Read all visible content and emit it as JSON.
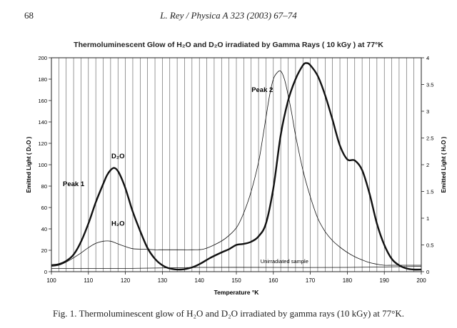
{
  "page": {
    "page_number": "68",
    "running_head": "L. Rey / Physica A 323 (2003) 67–74",
    "caption": "Fig. 1. Thermoluminescent glow of H₂O and D₂O irradiated by gamma rays (10 kGy) at 77°K."
  },
  "chart_data": {
    "type": "line",
    "title": "Thermoluminescent Glow of H₂O and D₂O irradiated by Gamma Rays ( 10 kGy ) at 77°K",
    "xlabel": "Temperature °K",
    "ylabel_left": "Emitted Light ( D₂O )",
    "ylabel_right": "Emitted Light ( H₂O )",
    "xlim": [
      100,
      200
    ],
    "ylim_left": [
      0,
      200
    ],
    "ylim_right": [
      0,
      4
    ],
    "x_ticks": [
      100,
      110,
      120,
      130,
      140,
      150,
      160,
      170,
      180,
      190,
      200
    ],
    "y_ticks_left": [
      0,
      20,
      40,
      60,
      80,
      100,
      120,
      140,
      160,
      180,
      200
    ],
    "y_ticks_right": [
      0,
      0.5,
      1,
      1.5,
      2,
      2.5,
      3,
      3.5,
      4
    ],
    "grid": "vertical lines every 2 °K",
    "series": [
      {
        "name": "D₂O",
        "axis": "left",
        "style": "thick",
        "x": [
          100,
          102,
          104,
          106,
          108,
          110,
          112,
          114,
          115,
          116,
          117,
          118,
          119,
          120,
          121,
          122,
          124,
          126,
          128,
          130,
          132,
          135,
          138,
          140,
          143,
          146,
          148,
          150,
          152,
          154,
          156,
          158,
          160,
          162,
          164,
          166,
          168,
          169,
          170,
          172,
          174,
          176,
          178,
          180,
          182,
          184,
          186,
          188,
          190,
          192,
          194,
          196,
          198,
          200
        ],
        "y": [
          6,
          7,
          10,
          16,
          28,
          45,
          65,
          82,
          90,
          95,
          97,
          94,
          87,
          78,
          67,
          56,
          38,
          22,
          12,
          6,
          3,
          2,
          4,
          7,
          13,
          18,
          21,
          25,
          26,
          28,
          33,
          45,
          78,
          128,
          160,
          180,
          193,
          195,
          193,
          183,
          165,
          142,
          118,
          105,
          104,
          95,
          73,
          45,
          25,
          12,
          6,
          3,
          2,
          2
        ]
      },
      {
        "name": "H₂O",
        "axis": "right",
        "style": "thin",
        "x": [
          100,
          102,
          104,
          106,
          108,
          110,
          112,
          114,
          116,
          118,
          120,
          122,
          125,
          128,
          130,
          134,
          138,
          141,
          144,
          147,
          150,
          152,
          154,
          156,
          157,
          158,
          159,
          160,
          161,
          162,
          163,
          164,
          165,
          166,
          168,
          170,
          172,
          174,
          176,
          178,
          180,
          182,
          184,
          186,
          188,
          190,
          192,
          194,
          196,
          198,
          200
        ],
        "y": [
          0.1,
          0.12,
          0.18,
          0.26,
          0.35,
          0.45,
          0.53,
          0.57,
          0.57,
          0.52,
          0.47,
          0.43,
          0.42,
          0.41,
          0.41,
          0.41,
          0.41,
          0.42,
          0.5,
          0.62,
          0.82,
          1.1,
          1.5,
          2.05,
          2.45,
          2.88,
          3.3,
          3.6,
          3.72,
          3.75,
          3.6,
          3.3,
          2.95,
          2.55,
          1.9,
          1.4,
          1.0,
          0.75,
          0.58,
          0.46,
          0.36,
          0.28,
          0.22,
          0.17,
          0.14,
          0.12,
          0.12,
          0.12,
          0.12,
          0.12,
          0.12
        ]
      },
      {
        "name": "Unirradiated sample",
        "axis": "left",
        "style": "thin",
        "x": [
          100,
          120,
          140,
          160,
          180,
          200
        ],
        "y": [
          3,
          3,
          4,
          4,
          4,
          5
        ]
      }
    ],
    "annotations": [
      {
        "text": "Peak 1",
        "x": 106,
        "y": 80
      },
      {
        "text": "D₂O",
        "x": 118,
        "y": 106
      },
      {
        "text": "H₂O",
        "x": 118,
        "y": 43
      },
      {
        "text": "Peak 2",
        "x": 157,
        "y": 168
      },
      {
        "text": "Unirradiated sample",
        "x": 163,
        "y": 8
      }
    ]
  }
}
